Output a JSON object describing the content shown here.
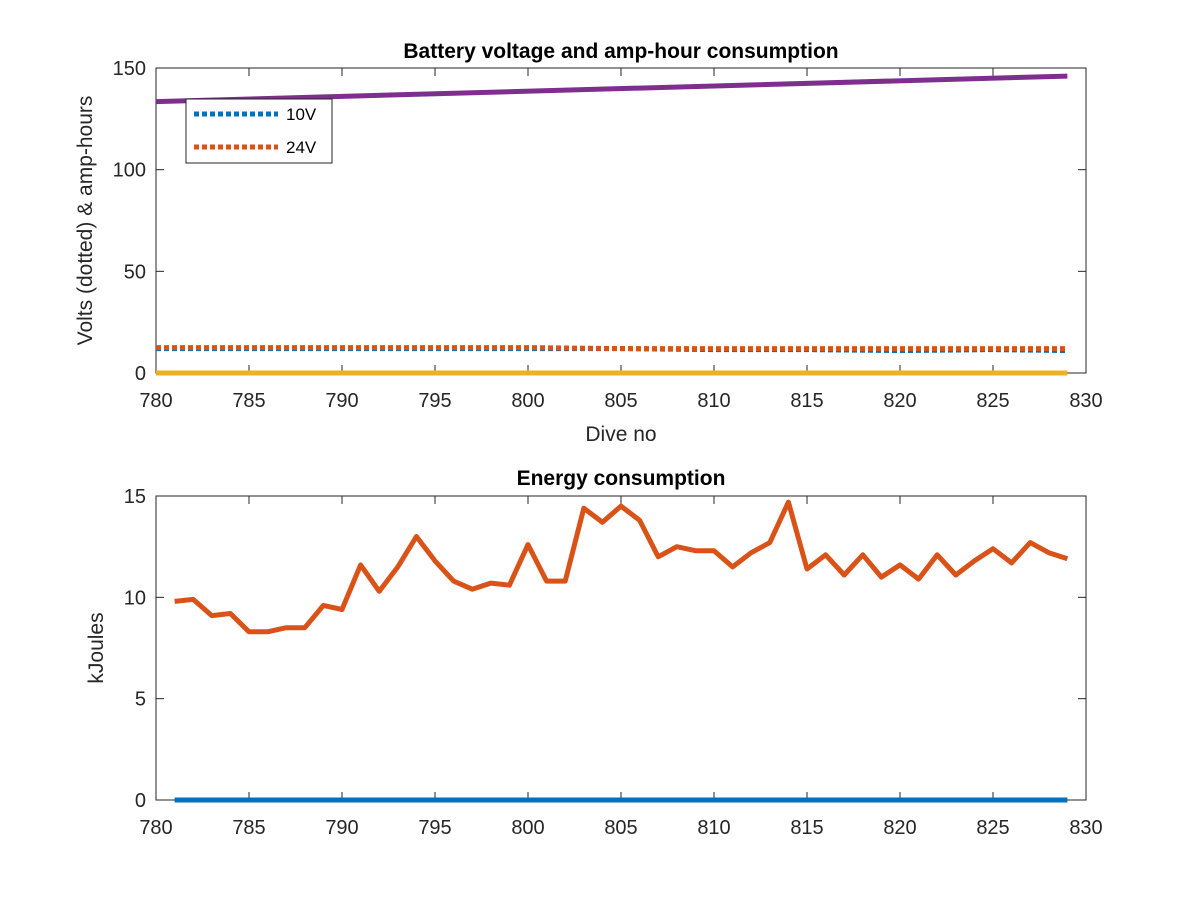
{
  "chart_data": [
    {
      "type": "line",
      "title": "Battery voltage and amp-hour consumption",
      "xlabel": "Dive no",
      "ylabel": "Volts (dotted) & amp-hours",
      "xlim": [
        780,
        830
      ],
      "ylim": [
        0,
        150
      ],
      "xticks": [
        780,
        785,
        790,
        795,
        800,
        805,
        810,
        815,
        820,
        825,
        830
      ],
      "yticks": [
        0,
        50,
        100,
        150
      ],
      "legend": {
        "placement": "top-left",
        "entries": [
          "10V",
          "24V"
        ]
      },
      "series": [
        {
          "name": "10V",
          "style": "dotted",
          "color": "#0072BD",
          "x": [
            780,
            790,
            800,
            805,
            810,
            815,
            820,
            825,
            829
          ],
          "y": [
            12,
            12,
            12,
            12,
            11.5,
            11.5,
            11,
            11.5,
            11
          ]
        },
        {
          "name": "24V",
          "style": "dotted",
          "color": "#D95319",
          "x": [
            780,
            790,
            800,
            805,
            810,
            815,
            820,
            825,
            829
          ],
          "y": [
            12.5,
            12.5,
            12.5,
            12,
            12,
            12,
            12,
            12,
            12
          ]
        },
        {
          "style": "solid",
          "color": "#EDB120",
          "x": [
            780,
            829
          ],
          "y": [
            0,
            0
          ]
        },
        {
          "style": "solid",
          "color": "#7E2F8E",
          "x": [
            780,
            829
          ],
          "y": [
            133.5,
            146
          ]
        }
      ]
    },
    {
      "type": "line",
      "title": "Energy consumption",
      "xlabel": "",
      "ylabel": "kJoules",
      "xlim": [
        780,
        830
      ],
      "ylim": [
        0,
        15
      ],
      "xticks": [
        780,
        785,
        790,
        795,
        800,
        805,
        810,
        815,
        820,
        825,
        830
      ],
      "yticks": [
        0,
        5,
        10,
        15
      ],
      "series": [
        {
          "style": "solid",
          "color": "#0072BD",
          "x": [
            781,
            829
          ],
          "y": [
            0,
            0
          ]
        },
        {
          "style": "solid",
          "color": "#D95319",
          "x": [
            781,
            782,
            783,
            784,
            785,
            786,
            787,
            788,
            789,
            790,
            791,
            792,
            793,
            794,
            795,
            796,
            797,
            798,
            799,
            800,
            801,
            802,
            803,
            804,
            805,
            806,
            807,
            808,
            809,
            810,
            811,
            812,
            813,
            814,
            815,
            816,
            817,
            818,
            819,
            820,
            821,
            822,
            823,
            824,
            825,
            826,
            827,
            828,
            829
          ],
          "y": [
            9.8,
            9.9,
            9.1,
            9.2,
            8.3,
            8.3,
            8.5,
            8.5,
            9.6,
            9.4,
            11.6,
            10.3,
            11.5,
            13.0,
            11.8,
            10.8,
            10.4,
            10.7,
            10.6,
            12.6,
            10.8,
            10.8,
            14.4,
            13.7,
            14.5,
            13.8,
            12.0,
            12.5,
            12.3,
            12.3,
            11.5,
            12.2,
            12.7,
            14.7,
            11.4,
            12.1,
            11.1,
            12.1,
            11.0,
            11.6,
            10.9,
            12.1,
            11.1,
            11.8,
            12.4,
            11.7,
            12.7,
            12.2,
            11.9
          ]
        }
      ]
    }
  ]
}
